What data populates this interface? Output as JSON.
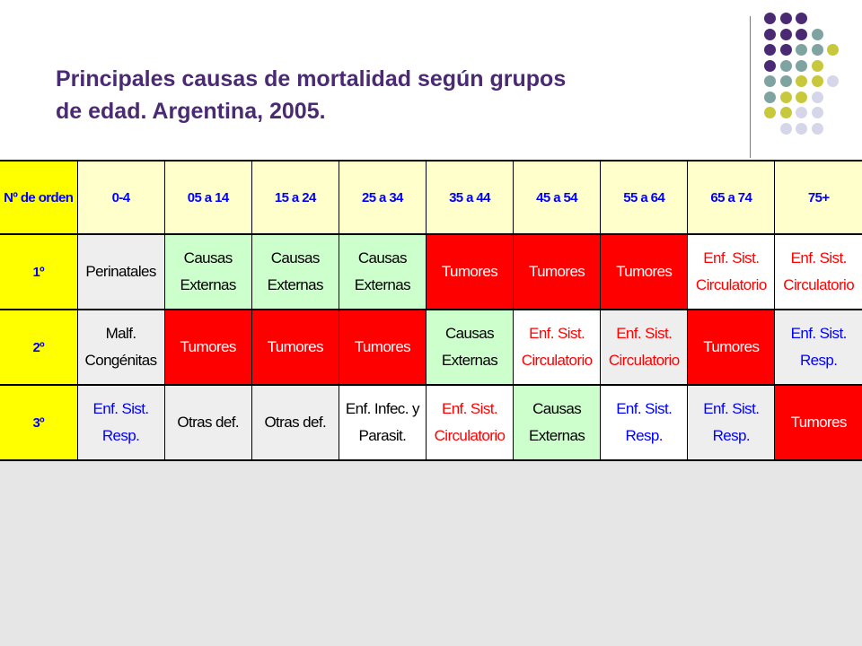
{
  "slide": {
    "title_line1": "Principales causas de mortalidad según grupos",
    "title_line2": "de edad. Argentina, 2005."
  },
  "colors": {
    "title": "#4b2a74",
    "header_bg": "#ffffcc",
    "row_header_bg": "#ffff00",
    "header_text": "#0000ff",
    "tumor_bg": "#ff0000",
    "external_bg": "#ccffcc",
    "dot_purple": "#4b2a74",
    "dot_teal": "#7ea3a0",
    "dot_olive": "#c8c83c",
    "dot_lavender": "#d6d6ea"
  },
  "table": {
    "corner": "Nº de orden",
    "age_groups": [
      "0-4",
      "05 a 14",
      "15 a 24",
      "25 a 34",
      "35 a 44",
      "45 a 54",
      "55 a 64",
      "65 a 74",
      "75+"
    ],
    "rows": [
      {
        "rank": "1º",
        "cells": [
          {
            "l1": "Perinatales",
            "l2": ""
          },
          {
            "l1": "Causas",
            "l2": "Externas"
          },
          {
            "l1": "Causas",
            "l2": "Externas"
          },
          {
            "l1": "Causas",
            "l2": "Externas"
          },
          {
            "l1": "Tumores",
            "l2": ""
          },
          {
            "l1": "Tumores",
            "l2": ""
          },
          {
            "l1": "Tumores",
            "l2": ""
          },
          {
            "l1": "Enf. Sist.",
            "l2": "Circulatorio"
          },
          {
            "l1": "Enf. Sist.",
            "l2": "Circulatorio"
          }
        ]
      },
      {
        "rank": "2º",
        "cells": [
          {
            "l1": "Malf.",
            "l2": "Congénitas"
          },
          {
            "l1": "Tumores",
            "l2": ""
          },
          {
            "l1": "Tumores",
            "l2": ""
          },
          {
            "l1": "Tumores",
            "l2": ""
          },
          {
            "l1": "Causas",
            "l2": "Externas"
          },
          {
            "l1": "Enf. Sist.",
            "l2": "Circulatorio"
          },
          {
            "l1": "Enf. Sist.",
            "l2": "Circulatorio"
          },
          {
            "l1": "Tumores",
            "l2": ""
          },
          {
            "l1": "Enf. Sist.",
            "l2": "Resp."
          }
        ]
      },
      {
        "rank": "3º",
        "cells": [
          {
            "l1": "Enf. Sist.",
            "l2": "Resp."
          },
          {
            "l1": "Otras def.",
            "l2": ""
          },
          {
            "l1": "Otras def.",
            "l2": ""
          },
          {
            "l1": "Enf. Infec. y",
            "l2": "Parasit."
          },
          {
            "l1": "Enf. Sist.",
            "l2": "Circulatorio"
          },
          {
            "l1": "Causas",
            "l2": "Externas"
          },
          {
            "l1": "Enf. Sist.",
            "l2": "Resp."
          },
          {
            "l1": "Enf. Sist.",
            "l2": "Resp."
          },
          {
            "l1": "Tumores",
            "l2": ""
          }
        ]
      }
    ]
  }
}
